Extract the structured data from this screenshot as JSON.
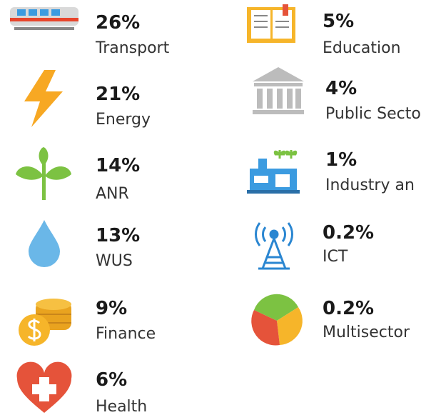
{
  "items": [
    {
      "percent": "26%",
      "label": "Transport"
    },
    {
      "percent": "21%",
      "label": "Energy"
    },
    {
      "percent": "14%",
      "label": "ANR"
    },
    {
      "percent": "13%",
      "label": "WUS"
    },
    {
      "percent": "9%",
      "label": "Finance"
    },
    {
      "percent": "6%",
      "label": "Health"
    },
    {
      "percent": "5%",
      "label": "Education"
    },
    {
      "percent": "4%",
      "label": "Public Secto"
    },
    {
      "percent": "1%",
      "label": "Industry an"
    },
    {
      "percent": "0.2%",
      "label": "ICT"
    },
    {
      "percent": "0.2%",
      "label": "Multisector"
    }
  ]
}
